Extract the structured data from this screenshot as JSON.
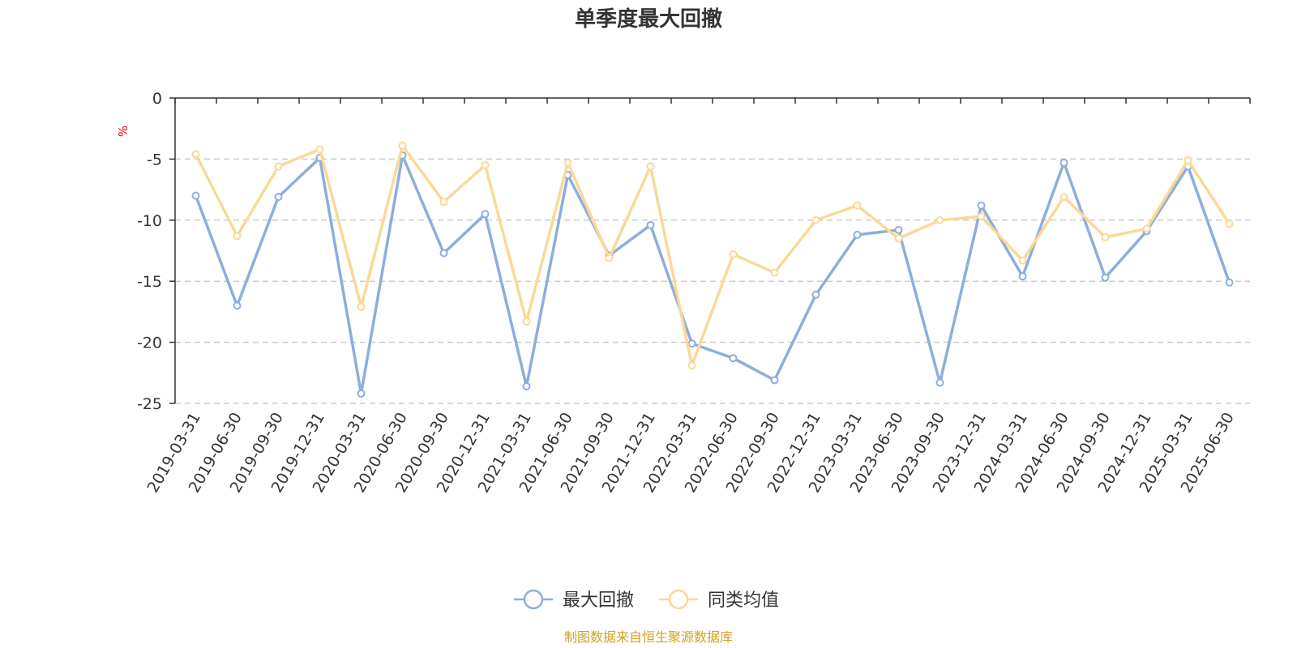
{
  "chart_data": {
    "type": "line",
    "title": "单季度最大回撤",
    "y_unit": "%",
    "ylim": [
      -25,
      0
    ],
    "y_ticks": [
      0,
      -5,
      -10,
      -15,
      -20,
      -25
    ],
    "grid": "horizontal dashed",
    "legend_position": "bottom-center",
    "categories": [
      "2019-03-31",
      "2019-06-30",
      "2019-09-30",
      "2019-12-31",
      "2020-03-31",
      "2020-06-30",
      "2020-09-30",
      "2020-12-31",
      "2021-03-31",
      "2021-06-30",
      "2021-09-30",
      "2021-12-31",
      "2022-03-31",
      "2022-06-30",
      "2022-09-30",
      "2022-12-31",
      "2023-03-31",
      "2023-06-30",
      "2023-09-30",
      "2023-12-31",
      "2024-03-31",
      "2024-06-30",
      "2024-09-30",
      "2024-12-31",
      "2025-03-31",
      "2025-06-30"
    ],
    "series": [
      {
        "name": "最大回撤",
        "color": "#8eaedb",
        "values": [
          -8.0,
          -17.0,
          -8.1,
          -4.9,
          -24.2,
          -4.7,
          -12.7,
          -9.5,
          -23.6,
          -6.3,
          -12.9,
          -10.4,
          -20.1,
          -21.3,
          -23.1,
          -16.1,
          -11.2,
          -10.8,
          -23.3,
          -8.8,
          -14.6,
          -5.3,
          -14.7,
          -10.9,
          -5.6,
          -15.1
        ]
      },
      {
        "name": "同类均值",
        "color": "#fbd898",
        "values": [
          -4.6,
          -11.3,
          -5.6,
          -4.2,
          -17.1,
          -3.9,
          -8.5,
          -5.5,
          -18.3,
          -5.3,
          -13.1,
          -5.6,
          -21.9,
          -12.8,
          -14.3,
          -10.0,
          -8.8,
          -11.5,
          -10.0,
          -9.7,
          -13.3,
          -8.1,
          -11.4,
          -10.7,
          -5.1,
          -10.3
        ]
      }
    ],
    "source_note": "制图数据来自恒生聚源数据库"
  }
}
